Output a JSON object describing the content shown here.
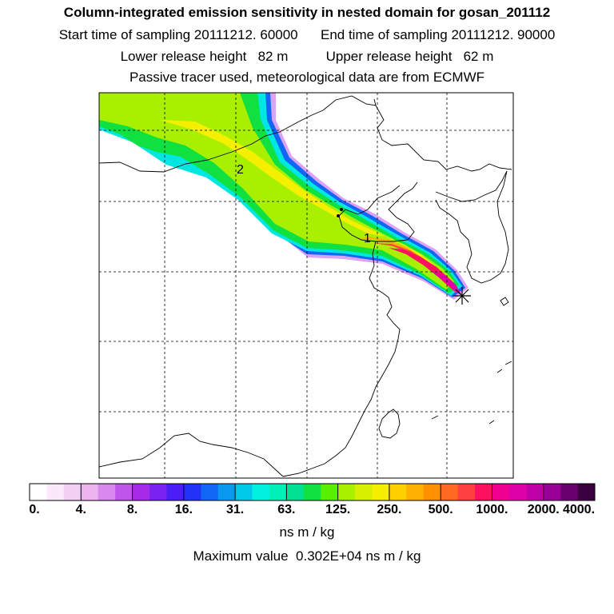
{
  "title": {
    "line1": "Column-integrated emission sensitivity in nested domain for gosan_201112",
    "line2_start": "Start time of sampling 20111212. 60000",
    "line2_end": "End time of sampling 20111212. 90000",
    "line3_lower": "Lower release height   82 m",
    "line3_upper": "Upper release height   62 m",
    "line4": "Passive tracer used, meteorological data are from ECMWF"
  },
  "chart_data": {
    "type": "heatmap",
    "title": "Column-integrated emission sensitivity in nested domain for gosan_201112",
    "colorbar_labels": [
      "0.",
      "4.",
      "8.",
      "16.",
      "31.",
      "63.",
      "125.",
      "250.",
      "500.",
      "1000.",
      "2000.",
      "4000."
    ],
    "colorbar_colors": [
      "#ffffff",
      "#fbe8fb",
      "#f4cff4",
      "#ecb3ef",
      "#d989ee",
      "#c055ec",
      "#a52be8",
      "#7a22f0",
      "#4b1ef5",
      "#2233f5",
      "#1166f5",
      "#0a99f0",
      "#00c8e8",
      "#00f0e0",
      "#00f0b8",
      "#00e090",
      "#10e040",
      "#58ef00",
      "#a8f000",
      "#d8f000",
      "#f5ef00",
      "#ffd000",
      "#ffb000",
      "#ff9000",
      "#ff6a20",
      "#ff4040",
      "#ff1060",
      "#f00090",
      "#e000a8",
      "#c000a8",
      "#9a0098",
      "#6a0070",
      "#3a0040"
    ],
    "units": "ns m / kg",
    "maximum_value": "0.302E+04",
    "maximum_value_text": "Maximum value  0.302E+04 ns m / kg",
    "annotations": [
      "1",
      "2"
    ],
    "receptor_marker": "*"
  },
  "colors": {
    "frame": "#000000",
    "grid": "#000000",
    "coast": "#000000"
  }
}
